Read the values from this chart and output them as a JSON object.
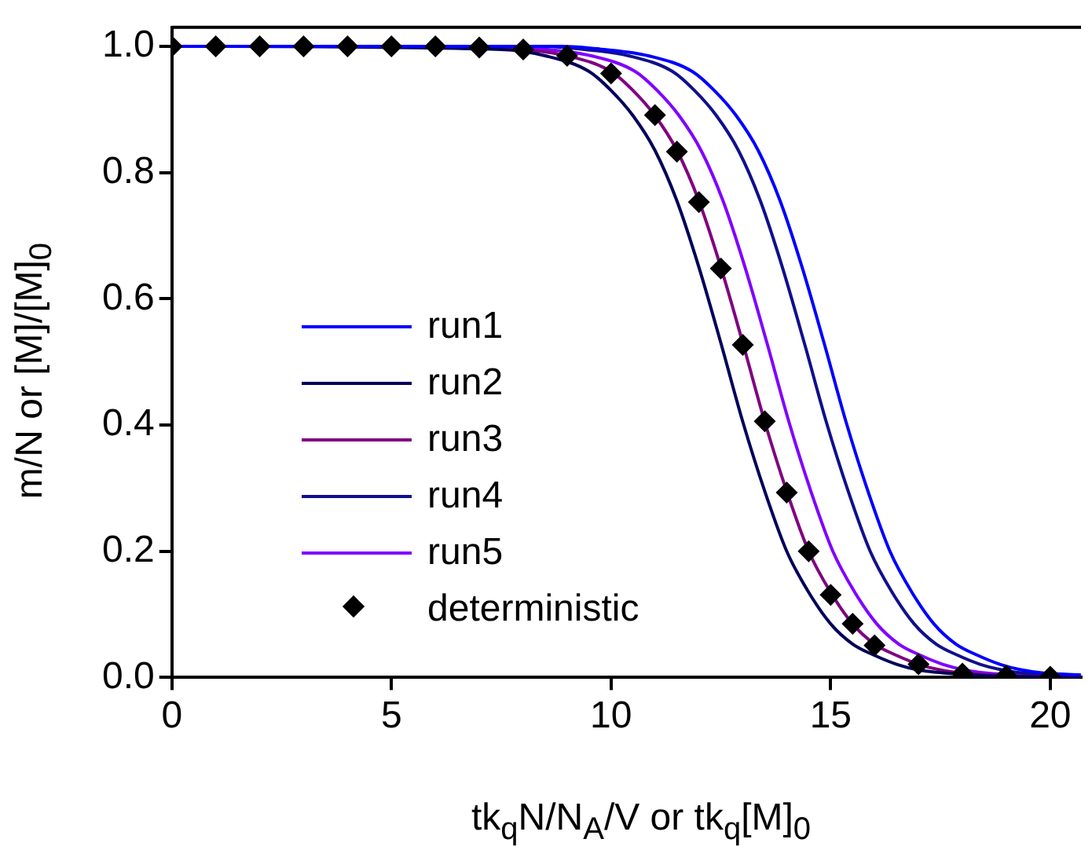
{
  "chart_data": {
    "type": "line",
    "xlabel": "tk$_{q}$N/N$_{A}$/V  or  tk$_{q}$[M]$_{0}$",
    "ylabel": "m/N  or  [M]/[M]$_{0}$",
    "xlim": [
      0,
      20.7
    ],
    "xticks": [
      0,
      5,
      10,
      15,
      20
    ],
    "ylim": [
      0,
      1.03
    ],
    "yticks": [
      {
        "value": 0,
        "label": "0.0"
      },
      {
        "value": 0.2,
        "label": "0.2"
      },
      {
        "value": 0.4,
        "label": "0.4"
      },
      {
        "value": 0.6,
        "label": "0.6"
      },
      {
        "value": 0.8,
        "label": "0.8"
      },
      {
        "value": 1,
        "label": "1.0"
      }
    ],
    "grid": false,
    "legend": "left",
    "marker": "none",
    "line_style": "solid",
    "series": [
      {
        "name": "run1",
        "color": "#0000ff",
        "x": [
          0,
          8.85,
          9.85,
          10.85,
          11.85,
          12.35,
          12.85,
          13.35,
          13.85,
          14.35,
          14.85,
          15.35,
          15.85,
          16.35,
          16.85,
          17.35,
          17.85,
          18.35,
          18.85,
          19.35,
          19.85,
          20.7
        ],
        "values": [
          1,
          1,
          0.995,
          0.985,
          0.96,
          0.93,
          0.89,
          0.835,
          0.755,
          0.65,
          0.53,
          0.405,
          0.295,
          0.2,
          0.135,
          0.085,
          0.053,
          0.035,
          0.021,
          0.012,
          0.007,
          0.004
        ]
      },
      {
        "name": "run2",
        "color": "#00005a",
        "x": [
          0,
          7.5,
          8.5,
          9.5,
          10,
          10.5,
          11,
          11.5,
          12,
          12.5,
          13,
          13.5,
          14,
          14.5,
          15,
          15.5,
          16,
          16.5,
          17,
          18,
          19,
          20.7
        ],
        "values": [
          1,
          0.995,
          0.985,
          0.96,
          0.93,
          0.89,
          0.835,
          0.755,
          0.65,
          0.53,
          0.405,
          0.295,
          0.2,
          0.135,
          0.085,
          0.053,
          0.035,
          0.021,
          0.012,
          0.005,
          0.002,
          0
        ]
      },
      {
        "name": "run3",
        "color": "#800080",
        "x": [
          0,
          7,
          8,
          9,
          10,
          10.5,
          11,
          11.5,
          12,
          12.5,
          13,
          13.5,
          14,
          14.5,
          15,
          15.5,
          16,
          16.5,
          17,
          17.5,
          18,
          19,
          20,
          20.7
        ],
        "values": [
          1,
          1,
          0.995,
          0.985,
          0.96,
          0.93,
          0.89,
          0.835,
          0.755,
          0.65,
          0.53,
          0.405,
          0.295,
          0.2,
          0.135,
          0.085,
          0.053,
          0.035,
          0.021,
          0.012,
          0.007,
          0.003,
          0.001,
          0
        ]
      },
      {
        "name": "run4",
        "color": "#10108c",
        "x": [
          0,
          8.4,
          9.4,
          10.4,
          11.4,
          11.9,
          12.4,
          12.9,
          13.4,
          13.9,
          14.4,
          14.9,
          15.4,
          15.9,
          16.4,
          16.9,
          17.4,
          17.9,
          18.4,
          18.9,
          19.4,
          20.4
        ],
        "values": [
          1,
          1,
          0.995,
          0.985,
          0.96,
          0.93,
          0.89,
          0.835,
          0.755,
          0.65,
          0.53,
          0.405,
          0.295,
          0.2,
          0.135,
          0.085,
          0.053,
          0.035,
          0.021,
          0.012,
          0.007,
          0.003
        ]
      },
      {
        "name": "run5",
        "color": "#8000ff",
        "x": [
          0,
          7.55,
          8.55,
          9.55,
          10.55,
          11.05,
          11.55,
          12.05,
          12.55,
          13.05,
          13.55,
          14.05,
          14.55,
          15.05,
          15.55,
          16.05,
          16.55,
          17.05,
          17.55,
          18.05,
          18.55,
          19.55,
          20.55
        ],
        "values": [
          1,
          1,
          0.995,
          0.985,
          0.96,
          0.93,
          0.89,
          0.835,
          0.755,
          0.65,
          0.53,
          0.405,
          0.295,
          0.2,
          0.135,
          0.085,
          0.053,
          0.035,
          0.021,
          0.012,
          0.007,
          0.003,
          0.001
        ]
      },
      {
        "name": "deterministic",
        "type": "scatter",
        "marker": "diamond",
        "color": "#000000",
        "x": [
          0,
          1,
          2,
          3,
          4,
          5,
          6,
          7,
          8,
          9,
          10,
          11,
          11.5,
          12,
          12.5,
          13,
          13.5,
          14,
          14.5,
          15,
          15.5,
          16,
          17,
          18,
          19,
          20
        ],
        "values": [
          1,
          1,
          1,
          1,
          1,
          1,
          1,
          0.998,
          0.995,
          0.985,
          0.957,
          0.891,
          0.833,
          0.753,
          0.648,
          0.527,
          0.406,
          0.293,
          0.2,
          0.131,
          0.085,
          0.051,
          0.021,
          0.006,
          0.003,
          0.001
        ]
      }
    ]
  }
}
